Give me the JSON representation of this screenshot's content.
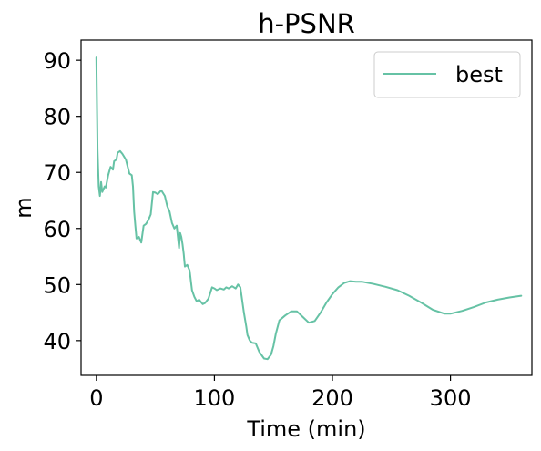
{
  "chart_data": {
    "type": "line",
    "title": "h-PSNR",
    "xlabel": "Time (min)",
    "ylabel": "m",
    "xlim": [
      -13,
      369
    ],
    "ylim": [
      33.8,
      93.6
    ],
    "xticks": [
      0,
      100,
      200,
      300
    ],
    "yticks": [
      40,
      50,
      60,
      70,
      80,
      90
    ],
    "grid": false,
    "legend_position": "top-right",
    "series": [
      {
        "name": "best",
        "color": "#66c2a5",
        "x": [
          0,
          1,
          2,
          3,
          4,
          5,
          6,
          7,
          8,
          10,
          12,
          14,
          15,
          17,
          18,
          20,
          22,
          25,
          28,
          30,
          31,
          32,
          33,
          34,
          36,
          38,
          40,
          42,
          44,
          46,
          48,
          50,
          52,
          55,
          58,
          60,
          62,
          64,
          66,
          68,
          70,
          71,
          72,
          73,
          74,
          75,
          77,
          79,
          81,
          83,
          85,
          87,
          90,
          92,
          95,
          98,
          100,
          102,
          105,
          108,
          110,
          112,
          115,
          118,
          120,
          122,
          123,
          125,
          127,
          128,
          130,
          132,
          135,
          138,
          142,
          145,
          148,
          150,
          152,
          155,
          160,
          165,
          170,
          175,
          180,
          185,
          190,
          195,
          200,
          205,
          210,
          215,
          220,
          225,
          235,
          245,
          255,
          265,
          275,
          285,
          295,
          300,
          310,
          320,
          330,
          340,
          350,
          360
        ],
        "y": [
          90.5,
          74,
          67.5,
          65.8,
          68.3,
          66.5,
          67,
          67.5,
          67.3,
          69.5,
          71,
          70.5,
          72,
          72.3,
          73.5,
          73.8,
          73.3,
          72.3,
          69.8,
          69.5,
          67.5,
          63,
          60.5,
          58.2,
          58.5,
          57.5,
          60.5,
          60.8,
          61.5,
          62.5,
          66.5,
          66.4,
          66.1,
          66.8,
          65.8,
          64,
          63,
          61,
          60,
          60.5,
          56.5,
          59.2,
          58.5,
          57.2,
          55.5,
          53.2,
          53.5,
          52.5,
          49,
          47.8,
          47,
          47.3,
          46.5,
          46.7,
          47.5,
          49.5,
          49.3,
          49,
          49.3,
          49.1,
          49.5,
          49.3,
          49.7,
          49.3,
          50,
          49.5,
          48,
          45,
          42.5,
          41,
          40,
          39.6,
          39.5,
          38,
          36.8,
          36.7,
          37.5,
          39,
          41.2,
          43.6,
          44.5,
          45.2,
          45.2,
          44.2,
          43.2,
          43.5,
          45,
          46.8,
          48.3,
          49.5,
          50.3,
          50.6,
          50.5,
          50.5,
          50.1,
          49.6,
          49,
          48,
          46.8,
          45.5,
          44.8,
          44.8,
          45.3,
          46,
          46.8,
          47.3,
          47.7,
          48
        ]
      }
    ]
  }
}
